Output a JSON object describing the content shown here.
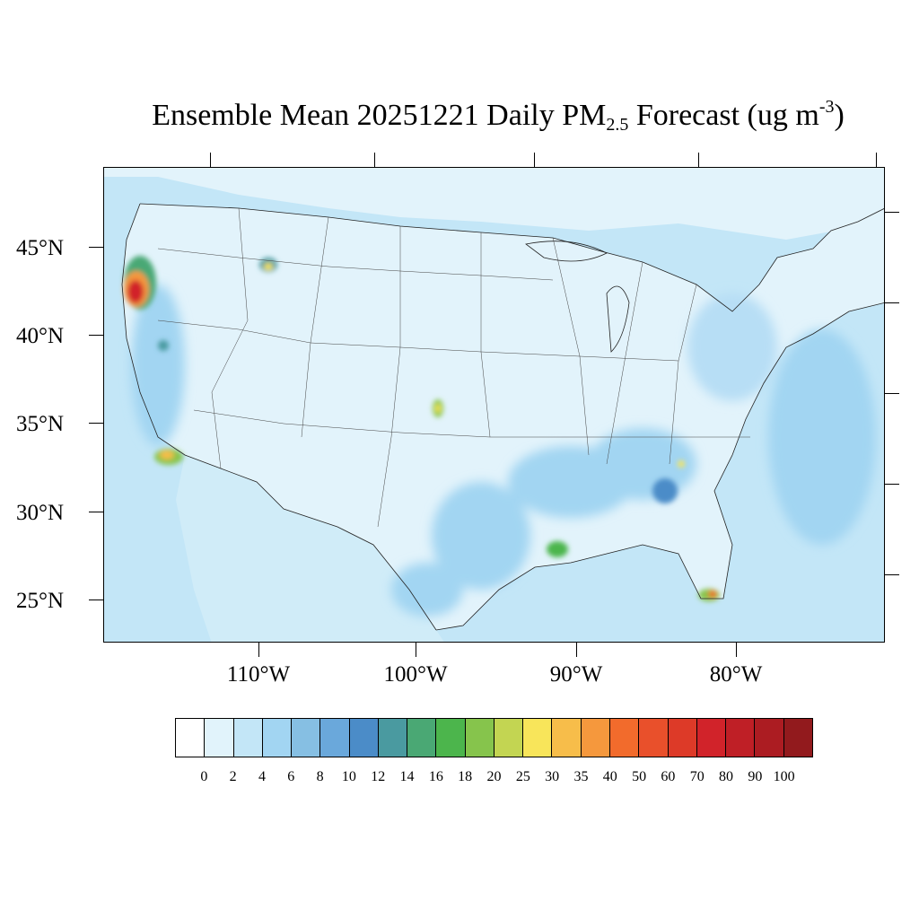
{
  "title": {
    "prefix": "Ensemble Mean 20251221 Daily PM",
    "subscript": "2.5",
    "middle": " Forecast (ug m",
    "superscript": "-3",
    "suffix": ")"
  },
  "map": {
    "region": "Contiguous United States",
    "lat_labels": [
      "45°N",
      "40°N",
      "35°N",
      "30°N",
      "25°N"
    ],
    "lon_labels": [
      "110°W",
      "100°W",
      "90°W",
      "80°W"
    ],
    "colors": {
      "ocean": "#c3e6f7",
      "land_low": "#e2f3fb",
      "boundary": "#222222"
    }
  },
  "colorbar": {
    "labels": [
      "0",
      "2",
      "4",
      "6",
      "8",
      "10",
      "12",
      "14",
      "16",
      "18",
      "20",
      "25",
      "30",
      "35",
      "40",
      "50",
      "60",
      "70",
      "80",
      "90",
      "100"
    ],
    "colors": [
      "#ffffff",
      "#e1f3fb",
      "#c3e6f7",
      "#a2d5f2",
      "#86bfe3",
      "#6aa8db",
      "#4b8cc8",
      "#4a9aa0",
      "#4aa874",
      "#4cb54c",
      "#86c44c",
      "#c3d552",
      "#f8e55a",
      "#f7bd4a",
      "#f5983d",
      "#f26b2c",
      "#e9502b",
      "#dd3a28",
      "#d1232a",
      "#bf1f26",
      "#ac1c22",
      "#921a1d"
    ]
  }
}
